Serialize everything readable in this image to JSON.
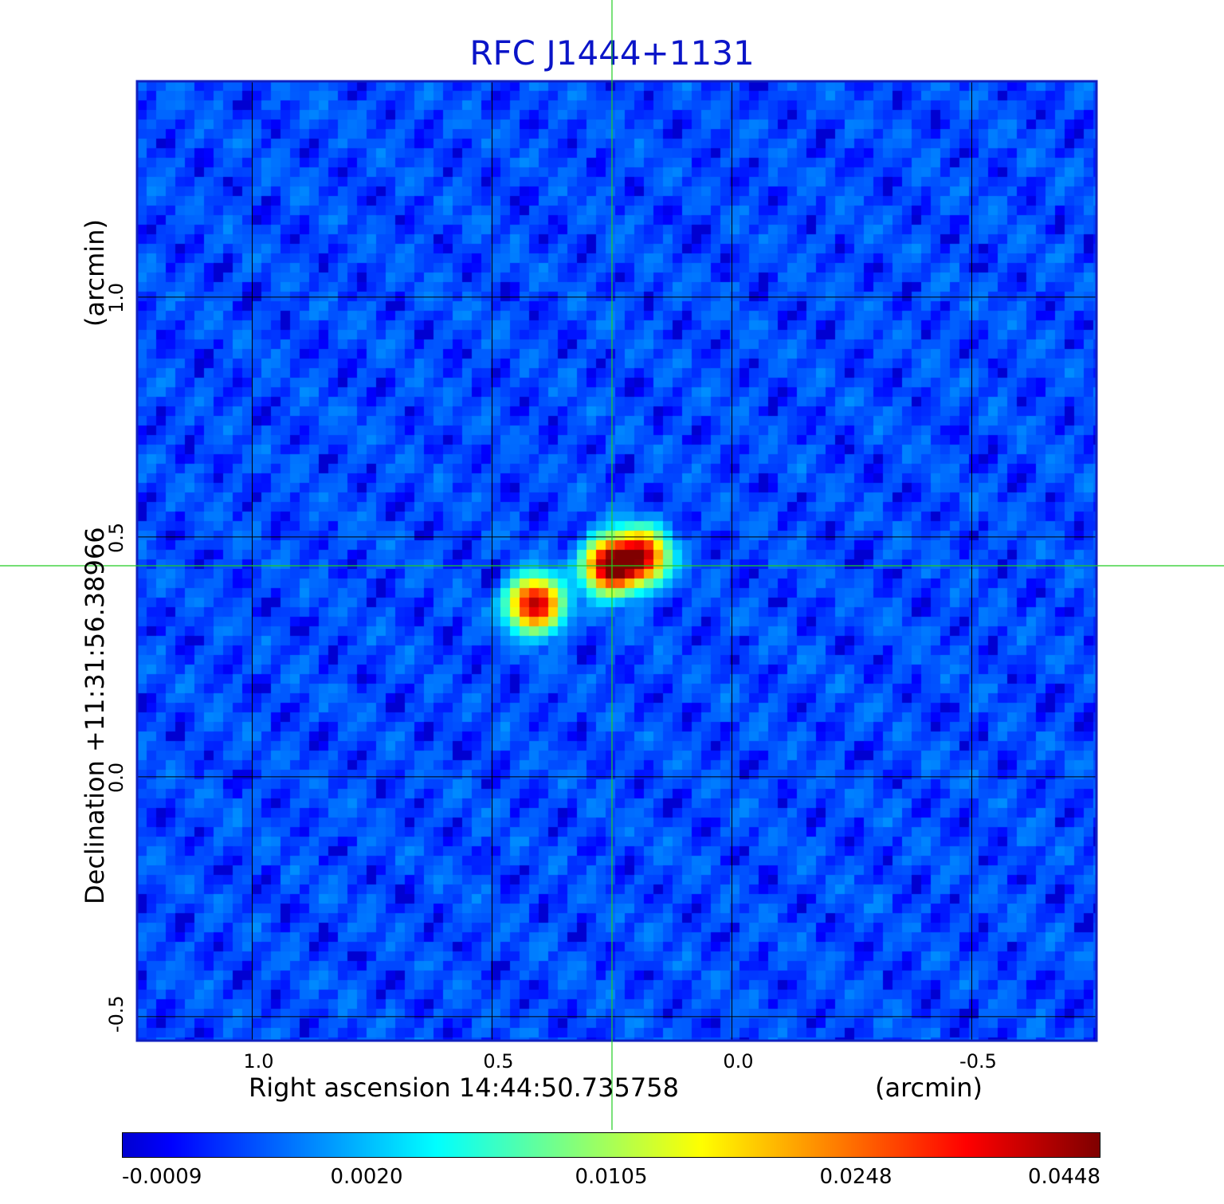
{
  "chart_data": {
    "type": "heatmap",
    "title": "RFC J1444+1131",
    "xlabel": "Right ascension  14:44:50.735758",
    "xunit": "(arcmin)",
    "ylabel": "Declination  +11:31:56.38966",
    "yunit": "(arcmin)",
    "x_axis": {
      "range": [
        1.24,
        -0.76
      ],
      "reversed": true,
      "ticks": [
        1.0,
        0.5,
        0.0,
        -0.5
      ],
      "tick_labels": [
        "1.0",
        "0.5",
        "0.0",
        "-0.5"
      ]
    },
    "y_axis": {
      "range": [
        -0.55,
        1.45
      ],
      "ticks": [
        -0.5,
        0.0,
        0.5,
        1.0
      ],
      "tick_labels": [
        "-0.5",
        "0.0",
        "0.5",
        "1.0"
      ]
    },
    "grid": true,
    "crosshair": {
      "x": 0.25,
      "y": 0.44,
      "color": "#22cc22"
    },
    "colormap": "jet",
    "colorbar": {
      "position": "bottom",
      "tick_labels": [
        "-0.0009",
        "0.0020",
        "0.0105",
        "0.0248",
        "0.0448"
      ]
    },
    "components": [
      {
        "ra_arcmin": 0.25,
        "dec_arcmin": 0.44,
        "peak": 0.0448
      },
      {
        "ra_arcmin": 0.19,
        "dec_arcmin": 0.46,
        "peak": 0.035
      },
      {
        "ra_arcmin": 0.41,
        "dec_arcmin": 0.36,
        "peak": 0.036
      }
    ],
    "background_level": -0.0002
  }
}
